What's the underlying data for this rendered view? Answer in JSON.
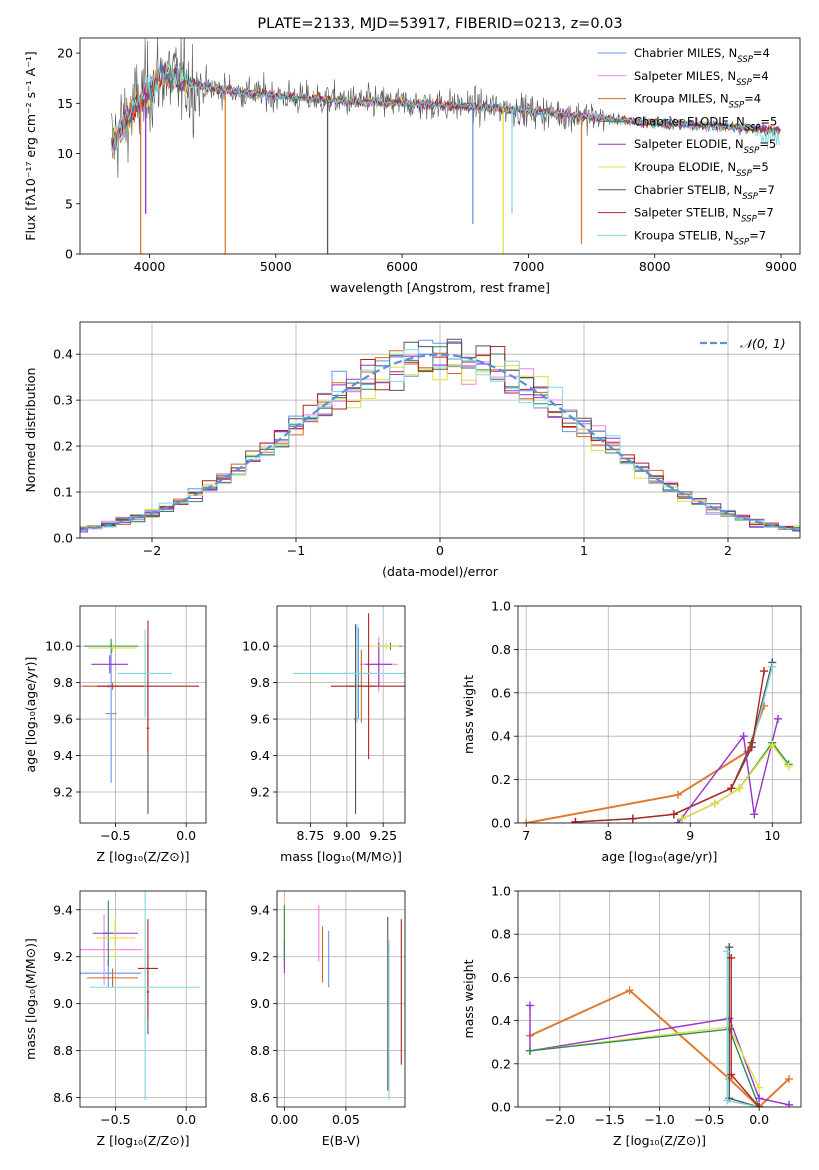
{
  "colors": {
    "Chabrier MILES": "#6495ed",
    "Salpeter MILES": "#ee82ee",
    "Kroupa MILES": "#d2691e",
    "Chabrier ELODIE": "#2e8b57",
    "Salpeter ELODIE": "#9932cc",
    "Kroupa ELODIE": "#e0e040",
    "Chabrier STELIB": "#555555",
    "Salpeter STELIB": "#b22222",
    "Kroupa STELIB": "#7fd8e0",
    "gauss": "#5b8fd9",
    "orange": "#e07a30"
  },
  "chart_data": [
    {
      "id": "spectrum",
      "type": "line",
      "title": "PLATE=2133, MJD=53917, FIBERID=0213, z=0.03",
      "xlabel": "wavelength [Angstrom, rest frame]",
      "ylabel": "Flux [fλ10⁻¹⁷ erg cm⁻² s⁻¹ A⁻¹]",
      "xlim": [
        3450,
        9150
      ],
      "ylim": [
        0,
        21.5
      ],
      "xticks": [
        4000,
        5000,
        6000,
        7000,
        8000,
        9000
      ],
      "yticks": [
        0,
        5,
        10,
        15,
        20
      ],
      "grid": false,
      "legend_position": "top-right",
      "legend": [
        {
          "label": "Chabrier MILES, N",
          "sub": "SSP",
          "tail": "=4"
        },
        {
          "label": "Salpeter MILES, N",
          "sub": "SSP",
          "tail": "=4"
        },
        {
          "label": "Kroupa MILES, N",
          "sub": "SSP",
          "tail": "=4"
        },
        {
          "label": "Chabrier ELODIE, N",
          "sub": "SSP",
          "tail": "=5"
        },
        {
          "label": "Salpeter ELODIE, N",
          "sub": "SSP",
          "tail": "=5"
        },
        {
          "label": "Kroupa ELODIE, N",
          "sub": "SSP",
          "tail": "=5"
        },
        {
          "label": "Chabrier STELIB, N",
          "sub": "SSP",
          "tail": "=7"
        },
        {
          "label": "Salpeter STELIB, N",
          "sub": "SSP",
          "tail": "=7"
        },
        {
          "label": "Kroupa STELIB, N",
          "sub": "SSP",
          "tail": "=7"
        }
      ],
      "continuum": [
        [
          3700,
          11
        ],
        [
          3800,
          13
        ],
        [
          3900,
          15
        ],
        [
          4000,
          16.5
        ],
        [
          4100,
          18
        ],
        [
          4300,
          17
        ],
        [
          4500,
          16.5
        ],
        [
          4800,
          16
        ],
        [
          5200,
          15.5
        ],
        [
          5600,
          15.2
        ],
        [
          6000,
          15
        ],
        [
          6400,
          14.8
        ],
        [
          6800,
          14.5
        ],
        [
          7200,
          14
        ],
        [
          7600,
          13.5
        ],
        [
          8000,
          13
        ],
        [
          8400,
          12.8
        ],
        [
          8800,
          12.5
        ],
        [
          9000,
          12.3
        ]
      ],
      "observed_noise_until": 7600,
      "drops": [
        {
          "x": 3930,
          "y": 0,
          "color": "orange"
        },
        {
          "x": 3970,
          "y": 4,
          "color": "Salpeter ELODIE"
        },
        {
          "x": 4600,
          "y": 0,
          "color": "orange"
        },
        {
          "x": 5410,
          "y": 0,
          "color": "Chabrier STELIB"
        },
        {
          "x": 6560,
          "y": 3,
          "color": "Chabrier MILES"
        },
        {
          "x": 6800,
          "y": 0,
          "color": "Kroupa ELODIE"
        },
        {
          "x": 6870,
          "y": 4,
          "color": "Kroupa STELIB"
        },
        {
          "x": 7420,
          "y": 1,
          "color": "orange"
        }
      ]
    },
    {
      "id": "residuals",
      "type": "line",
      "xlabel": "(data-model)/error",
      "ylabel": "Normed distribution",
      "xlim": [
        -2.5,
        2.5
      ],
      "ylim": [
        0,
        0.47
      ],
      "xticks": [
        -2,
        -1,
        0,
        1,
        2
      ],
      "yticks": [
        0.0,
        0.1,
        0.2,
        0.3,
        0.4
      ],
      "grid": true,
      "legend_position": "top-right",
      "legend": [
        {
          "label": "𝒩(0, 1)"
        }
      ],
      "bin_width": 0.1,
      "model_colors": [
        "Chabrier MILES",
        "Salpeter MILES",
        "Kroupa MILES",
        "Chabrier ELODIE",
        "Salpeter ELODIE",
        "Kroupa ELODIE",
        "Chabrier STELIB",
        "Salpeter STELIB",
        "Kroupa STELIB"
      ]
    },
    {
      "id": "age_vs_Z",
      "type": "scatter",
      "xlabel": "Z [log₁₀(Z/Z⊙)]",
      "ylabel": "age  [log₁₀(age/yr)]",
      "xlim": [
        -0.75,
        0.14
      ],
      "ylim": [
        9.03,
        10.22
      ],
      "xticks": [
        -0.5,
        0.0
      ],
      "xticklabels": [
        "−0.5",
        "0.0"
      ],
      "yticks": [
        9.2,
        9.4,
        9.6,
        9.8,
        10.0
      ],
      "grid": true,
      "errorbars": [
        {
          "m": "Chabrier MILES",
          "x": -0.53,
          "xe": 0.04,
          "y": 9.63,
          "ye": 0.38
        },
        {
          "m": "Salpeter MILES",
          "x": -0.55,
          "xe": 0.27,
          "y": 9.78,
          "ye": 0.01
        },
        {
          "m": "Kroupa MILES",
          "x": -0.52,
          "xe": 0.21,
          "y": 9.78,
          "ye": 0.02
        },
        {
          "m": "Chabrier ELODIE",
          "x": -0.53,
          "xe": 0.19,
          "y": 10.0,
          "ye": 0.04
        },
        {
          "m": "Salpeter ELODIE",
          "x": -0.54,
          "xe": 0.13,
          "y": 9.9,
          "ye": 0.05
        },
        {
          "m": "Kroupa ELODIE",
          "x": -0.52,
          "xe": 0.17,
          "y": 9.99,
          "ye": 0.02
        },
        {
          "m": "Chabrier STELIB",
          "x": -0.27,
          "xe": 0.01,
          "y": 9.55,
          "ye": 0.47
        },
        {
          "m": "Salpeter STELIB",
          "x": -0.27,
          "xe": 0.36,
          "y": 9.78,
          "ye": 0.36
        },
        {
          "m": "Kroupa STELIB",
          "x": -0.29,
          "xe": 0.19,
          "y": 9.85,
          "ye": 0.24
        }
      ]
    },
    {
      "id": "age_vs_mass",
      "type": "scatter",
      "xlabel": "mass [log₁₀(M/M⊙)]",
      "ylabel": "",
      "xlim": [
        8.52,
        9.4
      ],
      "ylim": [
        9.03,
        10.22
      ],
      "xticks": [
        8.75,
        9.0,
        9.25
      ],
      "xticklabels": [
        "8.75",
        "9.00",
        "9.25"
      ],
      "yticks": [
        9.2,
        9.4,
        9.6,
        9.8,
        10.0
      ],
      "grid": true,
      "errorbars": [
        {
          "m": "Chabrier MILES",
          "x": 9.08,
          "xe": 0.1,
          "y": 9.85,
          "ye": 0.25
        },
        {
          "m": "Salpeter MILES",
          "x": 9.22,
          "xe": 0.13,
          "y": 9.9,
          "ye": 0.15
        },
        {
          "m": "Kroupa MILES",
          "x": 9.1,
          "xe": 0.1,
          "y": 9.78,
          "ye": 0.2
        },
        {
          "m": "Chabrier ELODIE",
          "x": 9.3,
          "xe": 0.08,
          "y": 10.0,
          "ye": 0.02
        },
        {
          "m": "Salpeter ELODIE",
          "x": 9.22,
          "xe": 0.09,
          "y": 9.9,
          "ye": 0.12
        },
        {
          "m": "Kroupa ELODIE",
          "x": 9.27,
          "xe": 0.09,
          "y": 10.0,
          "ye": 0.02
        },
        {
          "m": "Chabrier STELIB",
          "x": 9.06,
          "xe": 0.01,
          "y": 9.6,
          "ye": 0.52
        },
        {
          "m": "Salpeter STELIB",
          "x": 9.15,
          "xe": 0.26,
          "y": 9.78,
          "ye": 0.4
        },
        {
          "m": "Kroupa STELIB",
          "x": 9.07,
          "xe": 0.44,
          "y": 9.85,
          "ye": 0.27
        }
      ]
    },
    {
      "id": "weight_vs_age",
      "type": "line",
      "xlabel": "age  [log₁₀(age/yr)]",
      "ylabel": "mass weight",
      "xlim": [
        6.9,
        10.35
      ],
      "ylim": [
        0,
        1.0
      ],
      "xticks": [
        7,
        8,
        9,
        10
      ],
      "yticks": [
        0.0,
        0.2,
        0.4,
        0.6,
        0.8,
        1.0
      ],
      "grid": true,
      "series": [
        {
          "m": "orange",
          "x": [
            7.0,
            8.85,
            9.7,
            9.9
          ],
          "y": [
            0.0,
            0.13,
            0.33,
            0.54
          ]
        },
        {
          "m": "Chabrier STELIB",
          "x": [
            7.6,
            8.3,
            8.8,
            9.5,
            9.75,
            10.0
          ],
          "y": [
            0.005,
            0.02,
            0.04,
            0.16,
            0.37,
            0.74
          ]
        },
        {
          "m": "Kroupa STELIB",
          "x": [
            7.6,
            8.3,
            8.8,
            9.5,
            9.75,
            10.0
          ],
          "y": [
            0.005,
            0.02,
            0.04,
            0.16,
            0.35,
            0.72
          ]
        },
        {
          "m": "Salpeter STELIB",
          "x": [
            7.6,
            8.3,
            8.8,
            9.5,
            9.75,
            9.9
          ],
          "y": [
            0.005,
            0.02,
            0.04,
            0.16,
            0.35,
            0.7
          ]
        },
        {
          "m": "Salpeter ELODIE",
          "x": [
            8.85,
            9.65,
            9.78,
            10.07
          ],
          "y": [
            0.0,
            0.4,
            0.04,
            0.48
          ]
        },
        {
          "m": "Chabrier ELODIE",
          "x": [
            8.9,
            9.3,
            9.6,
            10.0,
            10.2
          ],
          "y": [
            0.02,
            0.09,
            0.16,
            0.37,
            0.27
          ]
        },
        {
          "m": "Kroupa ELODIE",
          "x": [
            8.9,
            9.3,
            9.6,
            10.0,
            10.2
          ],
          "y": [
            0.02,
            0.09,
            0.16,
            0.36,
            0.26
          ]
        }
      ]
    },
    {
      "id": "mass_vs_Z",
      "type": "scatter",
      "xlabel": "Z [log₁₀(Z/Z⊙)]",
      "ylabel": "mass [log₁₀(M/M⊙)]",
      "xlim": [
        -0.75,
        0.14
      ],
      "ylim": [
        8.56,
        9.48
      ],
      "xticks": [
        -0.5,
        0.0
      ],
      "xticklabels": [
        "−0.5",
        "0.0"
      ],
      "yticks": [
        8.6,
        8.8,
        9.0,
        9.2,
        9.4
      ],
      "grid": true,
      "errorbars": [
        {
          "m": "Chabrier MILES",
          "x": -0.55,
          "xe": 0.23,
          "y": 9.13,
          "ye": 0.06
        },
        {
          "m": "Salpeter MILES",
          "x": -0.58,
          "xe": 0.27,
          "y": 9.23,
          "ye": 0.15
        },
        {
          "m": "Kroupa MILES",
          "x": -0.52,
          "xe": 0.18,
          "y": 9.11,
          "ye": 0.04
        },
        {
          "m": "Chabrier ELODIE",
          "x": -0.55,
          "xe": 0.03,
          "y": 9.3,
          "ye": 0.14
        },
        {
          "m": "Salpeter ELODIE",
          "x": -0.5,
          "xe": 0.16,
          "y": 9.3,
          "ye": 0.05
        },
        {
          "m": "Kroupa ELODIE",
          "x": -0.5,
          "xe": 0.14,
          "y": 9.28,
          "ye": 0.09
        },
        {
          "m": "Chabrier STELIB",
          "x": -0.27,
          "xe": 0.01,
          "y": 9.05,
          "ye": 0.18
        },
        {
          "m": "Salpeter STELIB",
          "x": -0.27,
          "xe": 0.07,
          "y": 9.15,
          "ye": 0.21
        },
        {
          "m": "Kroupa STELIB",
          "x": -0.29,
          "xe": 0.39,
          "y": 9.07,
          "ye": 0.48
        }
      ]
    },
    {
      "id": "mass_vs_ebv",
      "type": "scatter",
      "xlabel": "E(B-V)",
      "ylabel": "",
      "xlim": [
        -0.006,
        0.098
      ],
      "ylim": [
        8.56,
        9.48
      ],
      "xticks": [
        0.0,
        0.05
      ],
      "xticklabels": [
        "0.00",
        "0.05"
      ],
      "yticks": [
        8.6,
        8.8,
        9.0,
        9.2,
        9.4
      ],
      "grid": true,
      "errorbars": [
        {
          "m": "Kroupa ELODIE",
          "x": 0.0,
          "xe": 0.0,
          "y": 9.3,
          "ye": 0.15
        },
        {
          "m": "Salpeter ELODIE",
          "x": 0.0,
          "xe": 0.0,
          "y": 9.2,
          "ye": 0.07
        },
        {
          "m": "Chabrier ELODIE",
          "x": 0.0,
          "xe": 0.0,
          "y": 9.3,
          "ye": 0.12
        },
        {
          "m": "Salpeter MILES",
          "x": 0.028,
          "xe": 0.0,
          "y": 9.3,
          "ye": 0.12
        },
        {
          "m": "Kroupa MILES",
          "x": 0.031,
          "xe": 0.0,
          "y": 9.21,
          "ye": 0.12
        },
        {
          "m": "Chabrier MILES",
          "x": 0.036,
          "xe": 0.0,
          "y": 9.19,
          "ye": 0.12
        },
        {
          "m": "Chabrier STELIB",
          "x": 0.084,
          "xe": 0.0,
          "y": 9.0,
          "ye": 0.37
        },
        {
          "m": "Kroupa STELIB",
          "x": 0.085,
          "xe": 0.0,
          "y": 8.93,
          "ye": 0.34
        },
        {
          "m": "Salpeter STELIB",
          "x": 0.095,
          "xe": 0.0,
          "y": 9.05,
          "ye": 0.31
        }
      ]
    },
    {
      "id": "weight_vs_Z",
      "type": "line",
      "xlabel": "Z [log₁₀(Z/Z⊙)]",
      "ylabel": "mass weight",
      "xlim": [
        -2.42,
        0.42
      ],
      "ylim": [
        0,
        1.0
      ],
      "xticks": [
        -2.0,
        -1.5,
        -1.0,
        -0.5,
        0.0
      ],
      "xticklabels": [
        "−2.0",
        "−1.5",
        "−1.0",
        "−0.5",
        "0.0"
      ],
      "yticks": [
        0.0,
        0.2,
        0.4,
        0.6,
        0.8,
        1.0
      ],
      "grid": true,
      "series": [
        {
          "m": "orange",
          "x": [
            -2.3,
            -1.3,
            -0.3,
            0.0,
            0.3
          ],
          "y": [
            0.33,
            0.54,
            0.13,
            0.0,
            0.13
          ]
        },
        {
          "m": "Salpeter ELODIE",
          "x": [
            -2.3,
            -2.3,
            -0.3,
            0.0,
            0.3
          ],
          "y": [
            0.47,
            0.26,
            0.41,
            0.04,
            0.01
          ]
        },
        {
          "m": "Kroupa ELODIE",
          "x": [
            -2.3,
            -0.3,
            0.0
          ],
          "y": [
            0.26,
            0.37,
            0.09
          ]
        },
        {
          "m": "Chabrier ELODIE",
          "x": [
            -2.3,
            -0.3,
            0.0
          ],
          "y": [
            0.26,
            0.36,
            0.0
          ]
        },
        {
          "m": "Chabrier STELIB",
          "x": [
            -0.3,
            -0.3,
            0.0
          ],
          "y": [
            0.74,
            0.04,
            0.0
          ]
        },
        {
          "m": "Kroupa STELIB",
          "x": [
            -0.32,
            -0.32,
            0.0
          ],
          "y": [
            0.72,
            0.03,
            0.0
          ]
        },
        {
          "m": "Salpeter STELIB",
          "x": [
            -0.28,
            -0.28,
            0.0
          ],
          "y": [
            0.69,
            0.15,
            0.0
          ]
        }
      ]
    }
  ]
}
